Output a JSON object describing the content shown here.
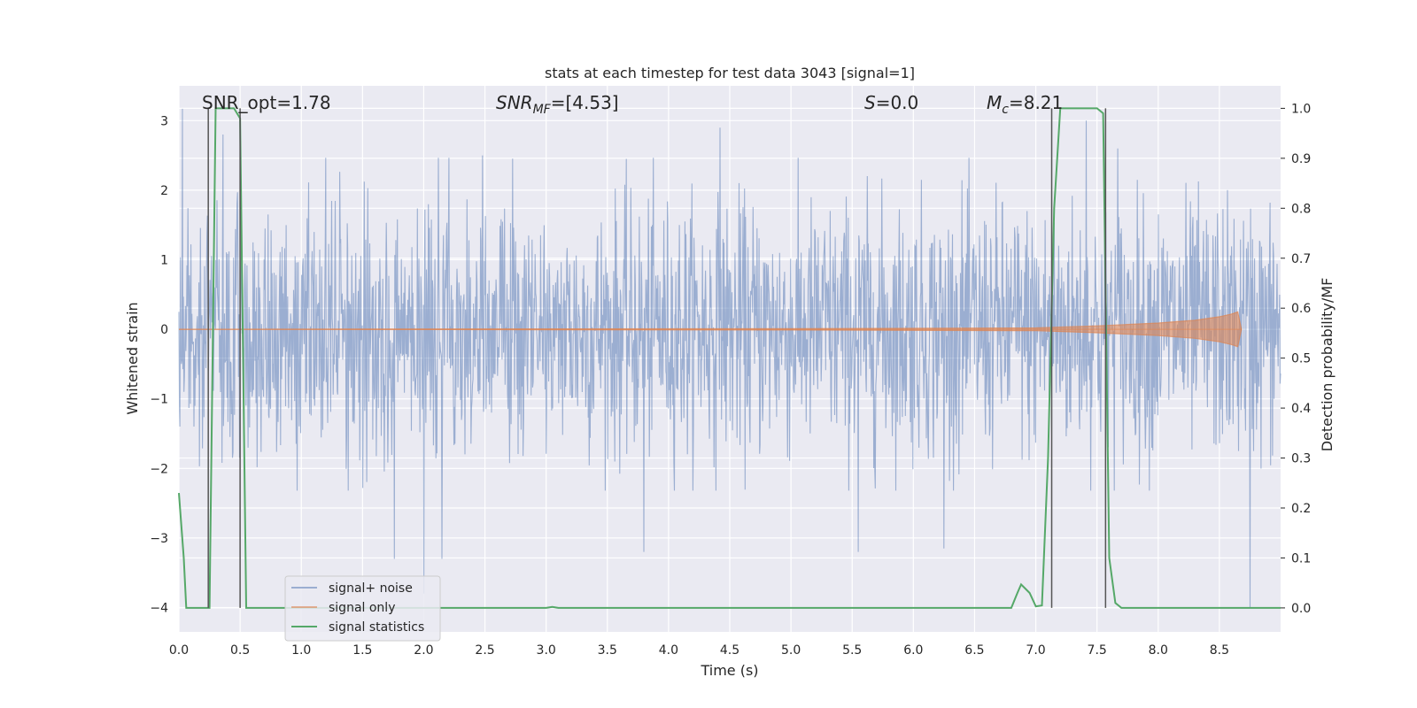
{
  "chart_data": {
    "type": "line",
    "title": "stats at each timestep for test data 3043 [signal=1]",
    "xlabel": "Time (s)",
    "ylabel": "Whitened strain",
    "ylabel_right": "Detection probability/MF",
    "xlim": [
      0.0,
      9.0
    ],
    "ylim": [
      -4.35,
      3.5
    ],
    "ylim_right": [
      -0.048,
      1.045
    ],
    "x_ticks": [
      "0.0",
      "0.5",
      "1.0",
      "1.5",
      "2.0",
      "2.5",
      "3.0",
      "3.5",
      "4.0",
      "4.5",
      "5.0",
      "5.5",
      "6.0",
      "6.5",
      "7.0",
      "7.5",
      "8.0",
      "8.5"
    ],
    "y_ticks": [
      "−4",
      "−3",
      "−2",
      "−1",
      "0",
      "1",
      "2",
      "3"
    ],
    "y_ticks_right": [
      "0.0",
      "0.1",
      "0.2",
      "0.3",
      "0.4",
      "0.5",
      "0.6",
      "0.7",
      "0.8",
      "0.9",
      "1.0"
    ],
    "grid": true,
    "legend_placement": "lower-left",
    "annotations": {
      "snr_opt": "SNR_opt=1.78",
      "snr_mf_sym": "SNR",
      "snr_mf_sub": "MF",
      "snr_mf_val": "=[4.53]",
      "s_sym": "S",
      "s_val": "=0.0",
      "mc_sym": "M",
      "mc_sub": "c",
      "mc_val": "=8.21"
    },
    "series": [
      {
        "name": "signal+ noise",
        "color": "#4c72b0",
        "envelope": {
          "upper_typical": 1.7,
          "lower_typical": -1.6,
          "peak_max": 3.2,
          "peak_min": -4.0
        },
        "notable_peaks": [
          [
            0.03,
            3.17
          ],
          [
            0.36,
            2.8
          ],
          [
            2.48,
            2.5
          ],
          [
            4.42,
            2.9
          ],
          [
            7.41,
            3.0
          ],
          [
            7.67,
            2.6
          ],
          [
            1.76,
            -3.3
          ],
          [
            2.0,
            -3.8
          ],
          [
            2.15,
            -3.3
          ],
          [
            3.8,
            -3.2
          ],
          [
            5.55,
            -3.2
          ],
          [
            6.25,
            -3.15
          ],
          [
            8.75,
            -4.0
          ]
        ]
      },
      {
        "name": "signal only",
        "color": "#dd8452",
        "x": [
          0.0,
          5.0,
          7.0,
          7.5,
          8.0,
          8.3,
          8.5,
          8.6,
          8.65,
          8.68
        ],
        "amplitude": [
          0.0,
          0.01,
          0.02,
          0.05,
          0.09,
          0.13,
          0.18,
          0.22,
          0.25,
          0.0
        ]
      },
      {
        "name": "signal statistics",
        "color": "#55a868",
        "axis": "right",
        "x": [
          0.0,
          0.04,
          0.06,
          0.1,
          0.2,
          0.25,
          0.3,
          0.45,
          0.5,
          0.55,
          0.6,
          3.0,
          3.05,
          3.1,
          6.8,
          6.85,
          6.88,
          6.95,
          7.0,
          7.05,
          7.1,
          7.15,
          7.2,
          7.25,
          7.5,
          7.55,
          7.6,
          7.65,
          7.7,
          7.8,
          8.5,
          9.0
        ],
        "values": [
          0.23,
          0.1,
          0.0,
          0.0,
          0.0,
          0.0,
          1.0,
          1.0,
          0.98,
          0.0,
          0.0,
          0.0,
          0.002,
          0.0,
          0.0,
          0.03,
          0.047,
          0.03,
          0.003,
          0.005,
          0.3,
          0.8,
          1.0,
          1.0,
          1.0,
          0.99,
          0.1,
          0.01,
          0.0,
          0.0,
          0.0,
          0.0
        ]
      }
    ],
    "vertical_lines": [
      0.24,
      0.5,
      7.13,
      7.57
    ]
  }
}
